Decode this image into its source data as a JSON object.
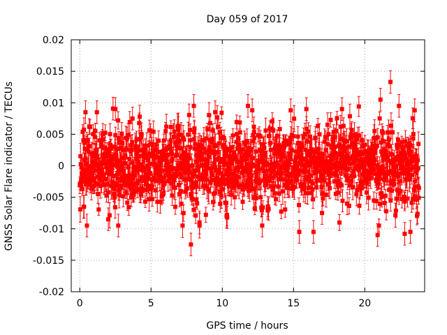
{
  "chart_data": {
    "type": "scatter",
    "title": "Day 059 of 2017",
    "xlabel": "GPS time / hours",
    "ylabel": "GNSS Solar Flare indicator / TECUs",
    "xlim": [
      -0.6,
      24.2
    ],
    "ylim": [
      -0.02,
      0.02
    ],
    "x_ticks": [
      0,
      5,
      10,
      15,
      20
    ],
    "x_tick_labels": [
      "0",
      "5",
      "10",
      "15",
      "20"
    ],
    "y_ticks": [
      -0.02,
      -0.015,
      -0.01,
      -0.005,
      0,
      0.005,
      0.01,
      0.015,
      0.02
    ],
    "y_tick_labels": [
      "-0.02",
      "-0.015",
      "-0.01",
      "-0.005",
      "0",
      "0.005",
      "0.01",
      "0.015",
      "0.02"
    ],
    "grid": true,
    "series_color": "#ff0000",
    "marker": "square",
    "error_bars": true,
    "x_range_data": [
      0,
      23.8
    ],
    "typical_spread": 0.004,
    "typical_error": 0.0015,
    "num_points": 1400,
    "outliers": [
      {
        "x": 0.3,
        "y": -0.0065
      },
      {
        "x": 0.4,
        "y": 0.0085
      },
      {
        "x": 0.5,
        "y": -0.0095
      },
      {
        "x": 1.2,
        "y": 0.0085
      },
      {
        "x": 2.0,
        "y": -0.0085
      },
      {
        "x": 2.5,
        "y": 0.009
      },
      {
        "x": 2.7,
        "y": -0.0095
      },
      {
        "x": 3.7,
        "y": 0.0075
      },
      {
        "x": 4.2,
        "y": 0.0078
      },
      {
        "x": 7.8,
        "y": -0.0125
      },
      {
        "x": 8.0,
        "y": 0.0095
      },
      {
        "x": 8.4,
        "y": -0.009
      },
      {
        "x": 9.5,
        "y": 0.0085
      },
      {
        "x": 10.3,
        "y": -0.008
      },
      {
        "x": 11.8,
        "y": 0.0095
      },
      {
        "x": 12.1,
        "y": 0.0088
      },
      {
        "x": 12.8,
        "y": -0.0095
      },
      {
        "x": 14.8,
        "y": 0.0088
      },
      {
        "x": 15.4,
        "y": -0.0105
      },
      {
        "x": 15.9,
        "y": 0.009
      },
      {
        "x": 16.4,
        "y": -0.0105
      },
      {
        "x": 17.0,
        "y": -0.0075
      },
      {
        "x": 18.4,
        "y": 0.009
      },
      {
        "x": 20.9,
        "y": -0.011
      },
      {
        "x": 21.1,
        "y": 0.0105
      },
      {
        "x": 21.8,
        "y": 0.0133
      },
      {
        "x": 22.4,
        "y": 0.0095
      },
      {
        "x": 22.8,
        "y": -0.0108
      },
      {
        "x": 23.2,
        "y": -0.0105
      },
      {
        "x": 23.5,
        "y": 0.0088
      }
    ]
  }
}
